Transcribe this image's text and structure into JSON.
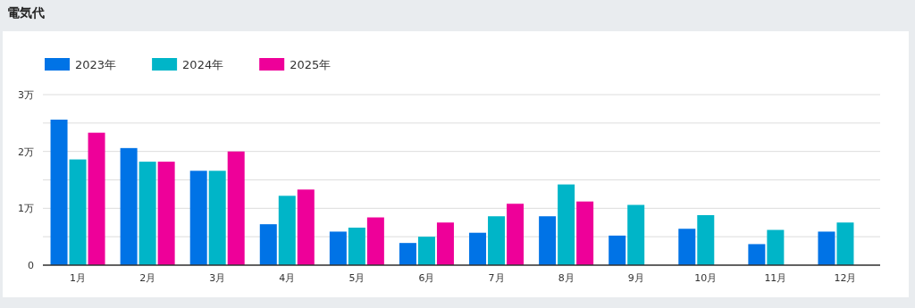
{
  "chart_data": {
    "type": "bar",
    "title": "電気代",
    "categories": [
      "1月",
      "2月",
      "3月",
      "4月",
      "5月",
      "6月",
      "7月",
      "8月",
      "9月",
      "10月",
      "11月",
      "12月"
    ],
    "series": [
      {
        "name": "2023年",
        "color": "#0073e6",
        "values": [
          2.56,
          2.06,
          1.66,
          0.72,
          0.59,
          0.39,
          0.57,
          0.86,
          0.52,
          0.64,
          0.37,
          0.59
        ]
      },
      {
        "name": "2024年",
        "color": "#00b5c8",
        "values": [
          1.86,
          1.82,
          1.66,
          1.22,
          0.66,
          0.5,
          0.86,
          1.42,
          1.06,
          0.88,
          0.62,
          0.75
        ]
      },
      {
        "name": "2025年",
        "color": "#ee0099",
        "values": [
          2.33,
          1.82,
          2.0,
          1.33,
          0.84,
          0.75,
          1.08,
          1.12,
          null,
          null,
          null,
          null
        ]
      }
    ],
    "ylim": [
      0,
      3
    ],
    "yticks": [
      0,
      {
        "value": 0.5,
        "label": null
      },
      {
        "value": 1,
        "label": "1万"
      },
      {
        "value": 1.5,
        "label": null
      },
      {
        "value": 2,
        "label": "2万"
      },
      {
        "value": 2.5,
        "label": null
      },
      {
        "value": 3,
        "label": "3万"
      }
    ],
    "grid": "y",
    "legend": "top left"
  }
}
